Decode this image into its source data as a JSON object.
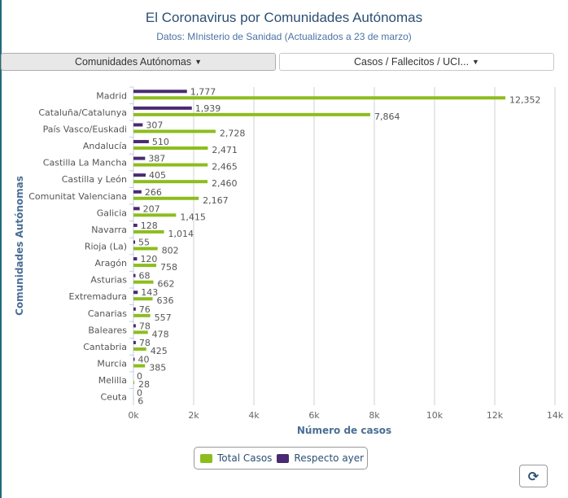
{
  "header": {
    "title": "El Coronavirus por Comunidades Autónomas",
    "subtitle": "Datos: MInisterio de Sanidad (Actualizados a 23 de marzo)"
  },
  "controls": {
    "dropdown_region": "Comunidades Autónomas",
    "dropdown_metric": "Casos / Fallecitos / UCI...",
    "refresh_icon": "refresh-icon"
  },
  "colors": {
    "total": "#8cbd1e",
    "respecto": "#4a2a72"
  },
  "chart_data": {
    "type": "bar",
    "orientation": "horizontal",
    "title": "El Coronavirus por Comunidades Autónomas",
    "xlabel": "Número de casos",
    "ylabel": "Comunidades Autónomas",
    "xlim": [
      0,
      14000
    ],
    "xticks": [
      "0k",
      "2k",
      "4k",
      "6k",
      "8k",
      "10k",
      "12k",
      "14k"
    ],
    "grid": true,
    "legend": "bottom-center",
    "categories": [
      "Madrid",
      "Cataluña/Catalunya",
      "País Vasco/Euskadi",
      "Andalucía",
      "Castilla La Mancha",
      "Castilla y León",
      "Comunitat Valenciana",
      "Galicia",
      "Navarra",
      "Rioja (La)",
      "Aragón",
      "Asturias",
      "Extremadura",
      "Canarias",
      "Baleares",
      "Cantabria",
      "Murcia",
      "Melilla",
      "Ceuta"
    ],
    "series": [
      {
        "name": "Total Casos",
        "values": [
          12352,
          7864,
          2728,
          2471,
          2465,
          2460,
          2167,
          1415,
          1014,
          802,
          758,
          662,
          636,
          557,
          478,
          425,
          385,
          28,
          6
        ],
        "labels": [
          "12,352",
          "7,864",
          "2,728",
          "2,471",
          "2,465",
          "2,460",
          "2,167",
          "1,415",
          "1,014",
          "802",
          "758",
          "662",
          "636",
          "557",
          "478",
          "425",
          "385",
          "28",
          "6"
        ]
      },
      {
        "name": "Respecto ayer",
        "values": [
          1777,
          1939,
          307,
          510,
          387,
          405,
          266,
          207,
          128,
          55,
          120,
          68,
          143,
          76,
          78,
          78,
          40,
          0,
          0
        ],
        "labels": [
          "1,777",
          "1,939",
          "307",
          "510",
          "387",
          "405",
          "266",
          "207",
          "128",
          "55",
          "120",
          "68",
          "143",
          "76",
          "78",
          "78",
          "40",
          "0",
          "0"
        ]
      }
    ]
  }
}
